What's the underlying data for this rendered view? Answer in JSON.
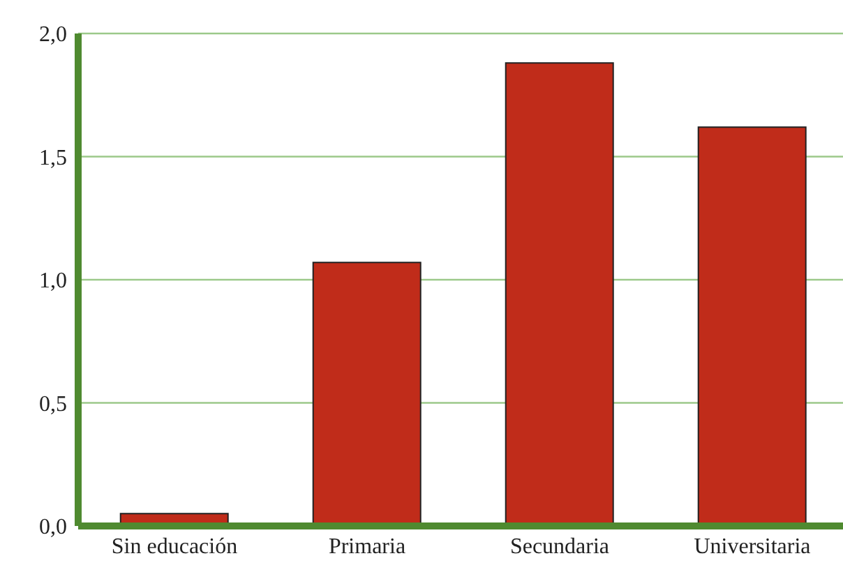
{
  "chart_data": {
    "type": "bar",
    "categories": [
      "Sin educación",
      "Primaria",
      "Secundaria",
      "Universitaria"
    ],
    "values": [
      0.05,
      1.07,
      1.88,
      1.62
    ],
    "color": "#c02c1a",
    "ylim": [
      0,
      2
    ],
    "yticks": [
      {
        "value": 0,
        "label": "0,0"
      },
      {
        "value": 0.5,
        "label": "0,5"
      },
      {
        "value": 1,
        "label": "1,0"
      },
      {
        "value": 1.5,
        "label": "1,5"
      },
      {
        "value": 2,
        "label": "2,0"
      }
    ],
    "grid": "y"
  }
}
